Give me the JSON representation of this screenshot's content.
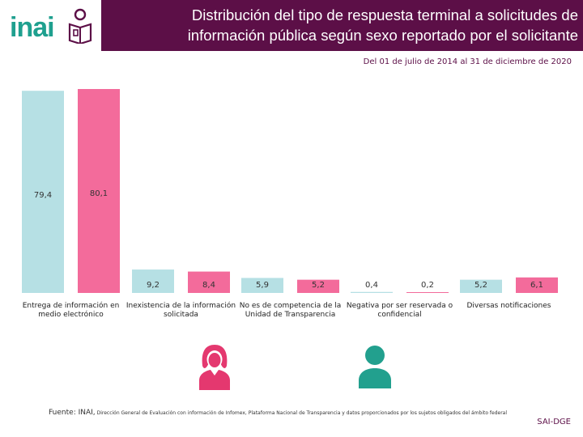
{
  "logo": {
    "text": "inai"
  },
  "header": {
    "title": "Distribución del tipo de respuesta terminal a solicitudes de información pública según sexo reportado por el solicitante"
  },
  "subtitle": "Del 01 de julio de 2014 al 31 de diciembre de 2020",
  "colors": {
    "hombre": "#b6e0e4",
    "mujer": "#f36b9b",
    "header": "#5c0f47",
    "icon": "#e4386f",
    "icon_male": "#22a08e"
  },
  "chart_data": {
    "type": "bar",
    "title": "Distribución del tipo de respuesta terminal a solicitudes de información pública según sexo reportado por el solicitante",
    "categories": [
      [
        "Entrega de información en",
        "medio electrónico"
      ],
      [
        "Inexistencia de la información",
        "solicitada"
      ],
      [
        "No es de competencia de la",
        "Unidad de Transparencia"
      ],
      [
        "Negativa por ser reservada o",
        "confidencial"
      ],
      [
        "Diversas notificaciones"
      ]
    ],
    "series": [
      {
        "name": "Hombre",
        "values": [
          79.4,
          9.2,
          5.9,
          0.4,
          5.2
        ],
        "labels": [
          "79,4",
          "9,2",
          "5,9",
          "0,4",
          "5,2"
        ]
      },
      {
        "name": "Mujer",
        "values": [
          80.1,
          8.4,
          5.2,
          0.2,
          6.1
        ],
        "labels": [
          "80,1",
          "8,4",
          "5,2",
          "0,2",
          "6,1"
        ]
      }
    ],
    "ylim": [
      0,
      80.1
    ],
    "xlabel": "",
    "ylabel": "",
    "legend_icons": [
      "woman",
      "man"
    ]
  },
  "footer": {
    "lead": "Fuente: INAI,",
    "text": "Dirección General de Evaluación con información de Infomex, Plataforma Nacional de Transparencia y datos proporcionados por los sujetos obligados del ámbito federal",
    "sai": "SAI-DGE"
  }
}
